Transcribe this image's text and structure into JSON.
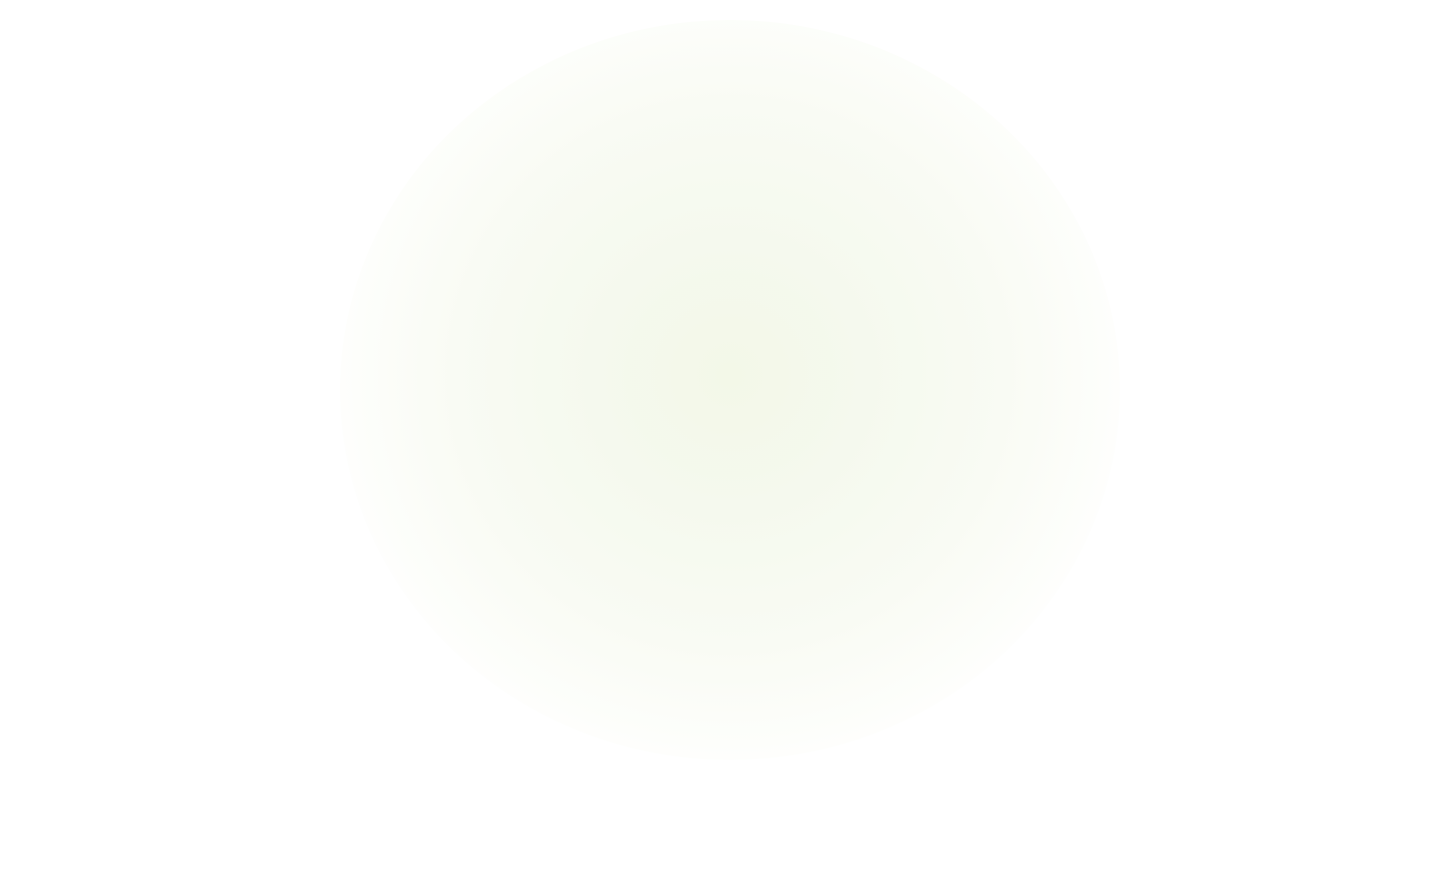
{
  "page": {
    "background_color": "#ffffff",
    "glow_color": "#f3f8e8"
  }
}
